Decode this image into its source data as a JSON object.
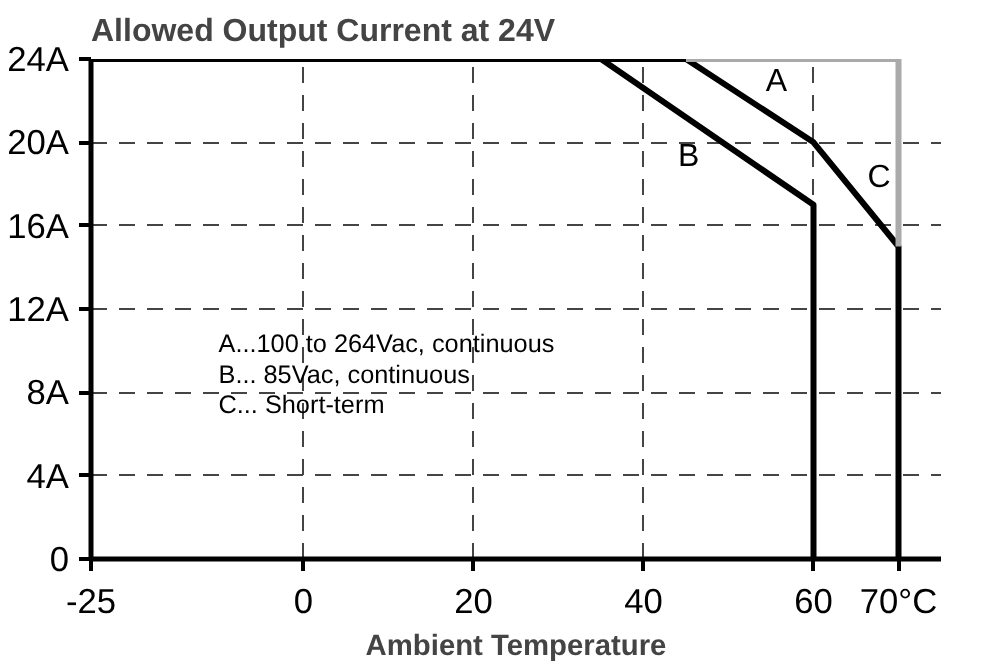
{
  "chart_data": {
    "type": "line",
    "title": "Allowed Output Current at 24V",
    "xlabel": "Ambient Temperature",
    "series": [
      {
        "name": "A",
        "color": "#000000",
        "x": [
          -25,
          45,
          60,
          70,
          70
        ],
        "values": [
          24,
          24,
          20,
          15,
          0
        ]
      },
      {
        "name": "B",
        "color": "#000000",
        "x": [
          -25,
          35,
          60,
          60
        ],
        "values": [
          24,
          24,
          17,
          0
        ]
      },
      {
        "name": "C",
        "color": "#aaaaaa",
        "x": [
          45,
          70,
          70
        ],
        "values": [
          24,
          24,
          15
        ]
      }
    ],
    "annotations": [
      "A...100  to  264Vac,  continuous",
      "B...  85Vac,  continuous",
      "C... Short-term"
    ],
    "xlim": [
      -25,
      75
    ],
    "ylim": [
      0,
      24
    ],
    "xticks": [
      -25,
      0,
      20,
      40,
      60,
      {
        "value": 70,
        "label": "70°C"
      }
    ],
    "yticks": [
      0,
      {
        "value": 4,
        "label": "4A"
      },
      {
        "value": 8,
        "label": "8A"
      },
      {
        "value": 12,
        "label": "12A"
      },
      {
        "value": 16,
        "label": "16A"
      },
      {
        "value": 20,
        "label": "20A"
      },
      {
        "value": 24,
        "label": "24A"
      }
    ],
    "grid": true,
    "line_style": "solid"
  }
}
